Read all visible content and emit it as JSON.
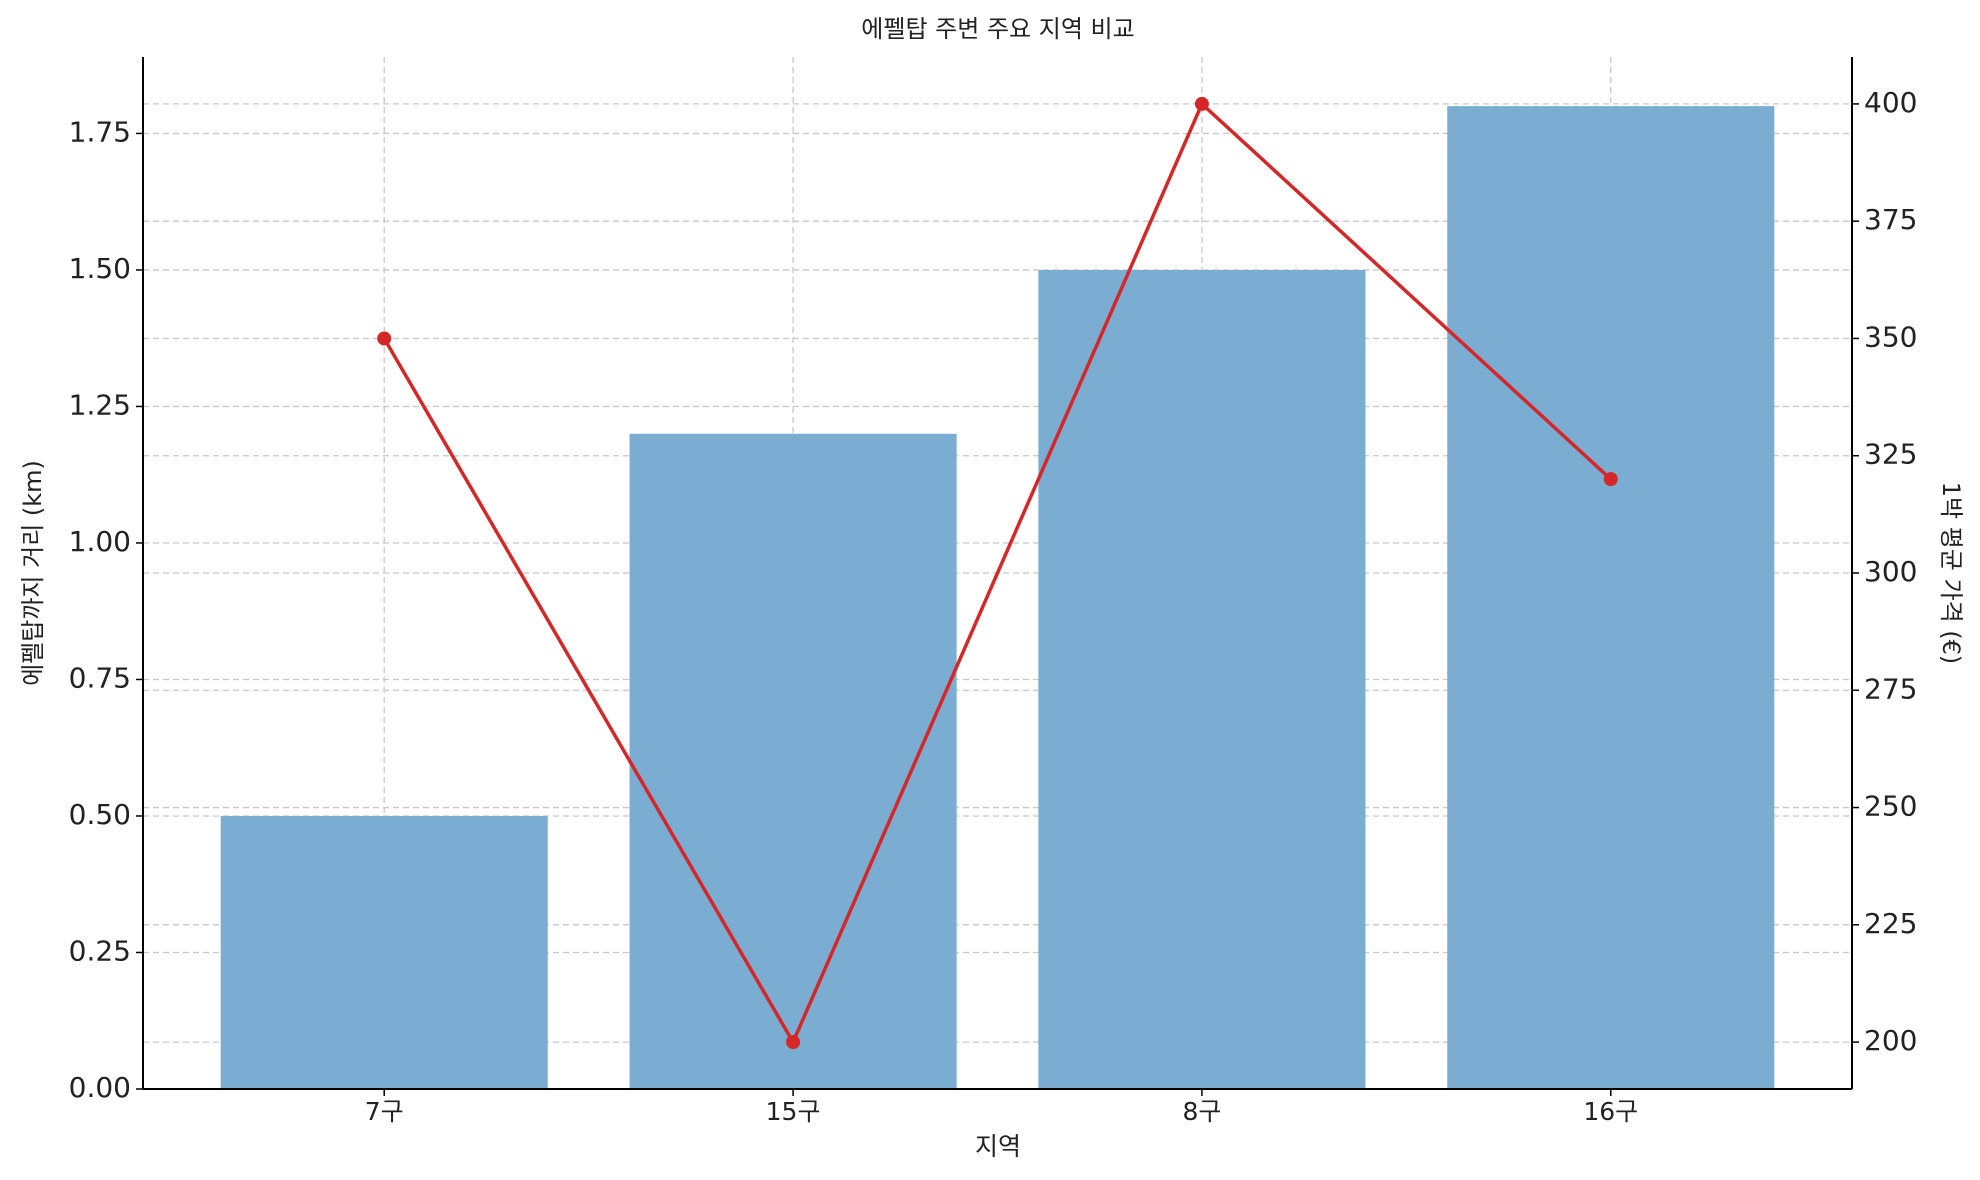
{
  "chart_data": {
    "type": "bar-line",
    "title": "에펠탑 주변 주요 지역 비교",
    "x_label": "지역",
    "y_label": "에펠탑까지 거리 (km)",
    "y2_label": "1박 평균 가격 (€)",
    "categories": [
      "7구",
      "15구",
      "8구",
      "16구"
    ],
    "series": [
      {
        "name": "에펠탑까지 거리 (km)",
        "kind": "bar",
        "color": "#7aadd1",
        "values": [
          0.5,
          1.2,
          1.5,
          1.8
        ]
      },
      {
        "name": "1박 평균 가격 (€)",
        "kind": "line",
        "axis": "y2",
        "color": "#d62728",
        "values": [
          350,
          200,
          400,
          320
        ]
      }
    ],
    "ylim": [
      0,
      1.89
    ],
    "yticks": [
      {
        "value": 0,
        "label": "0.00"
      },
      {
        "value": 0.25,
        "label": "0.25"
      },
      {
        "value": 0.5,
        "label": "0.50"
      },
      {
        "value": 0.75,
        "label": "0.75"
      },
      {
        "value": 1,
        "label": "1.00"
      },
      {
        "value": 1.25,
        "label": "1.25"
      },
      {
        "value": 1.5,
        "label": "1.50"
      },
      {
        "value": 1.75,
        "label": "1.75"
      }
    ],
    "y2lim": [
      190,
      410
    ],
    "y2ticks": [
      200,
      225,
      250,
      275,
      300,
      325,
      350,
      375,
      400
    ],
    "y_color": "#1f77b4",
    "y2_color": "#d62728",
    "grid": true
  }
}
